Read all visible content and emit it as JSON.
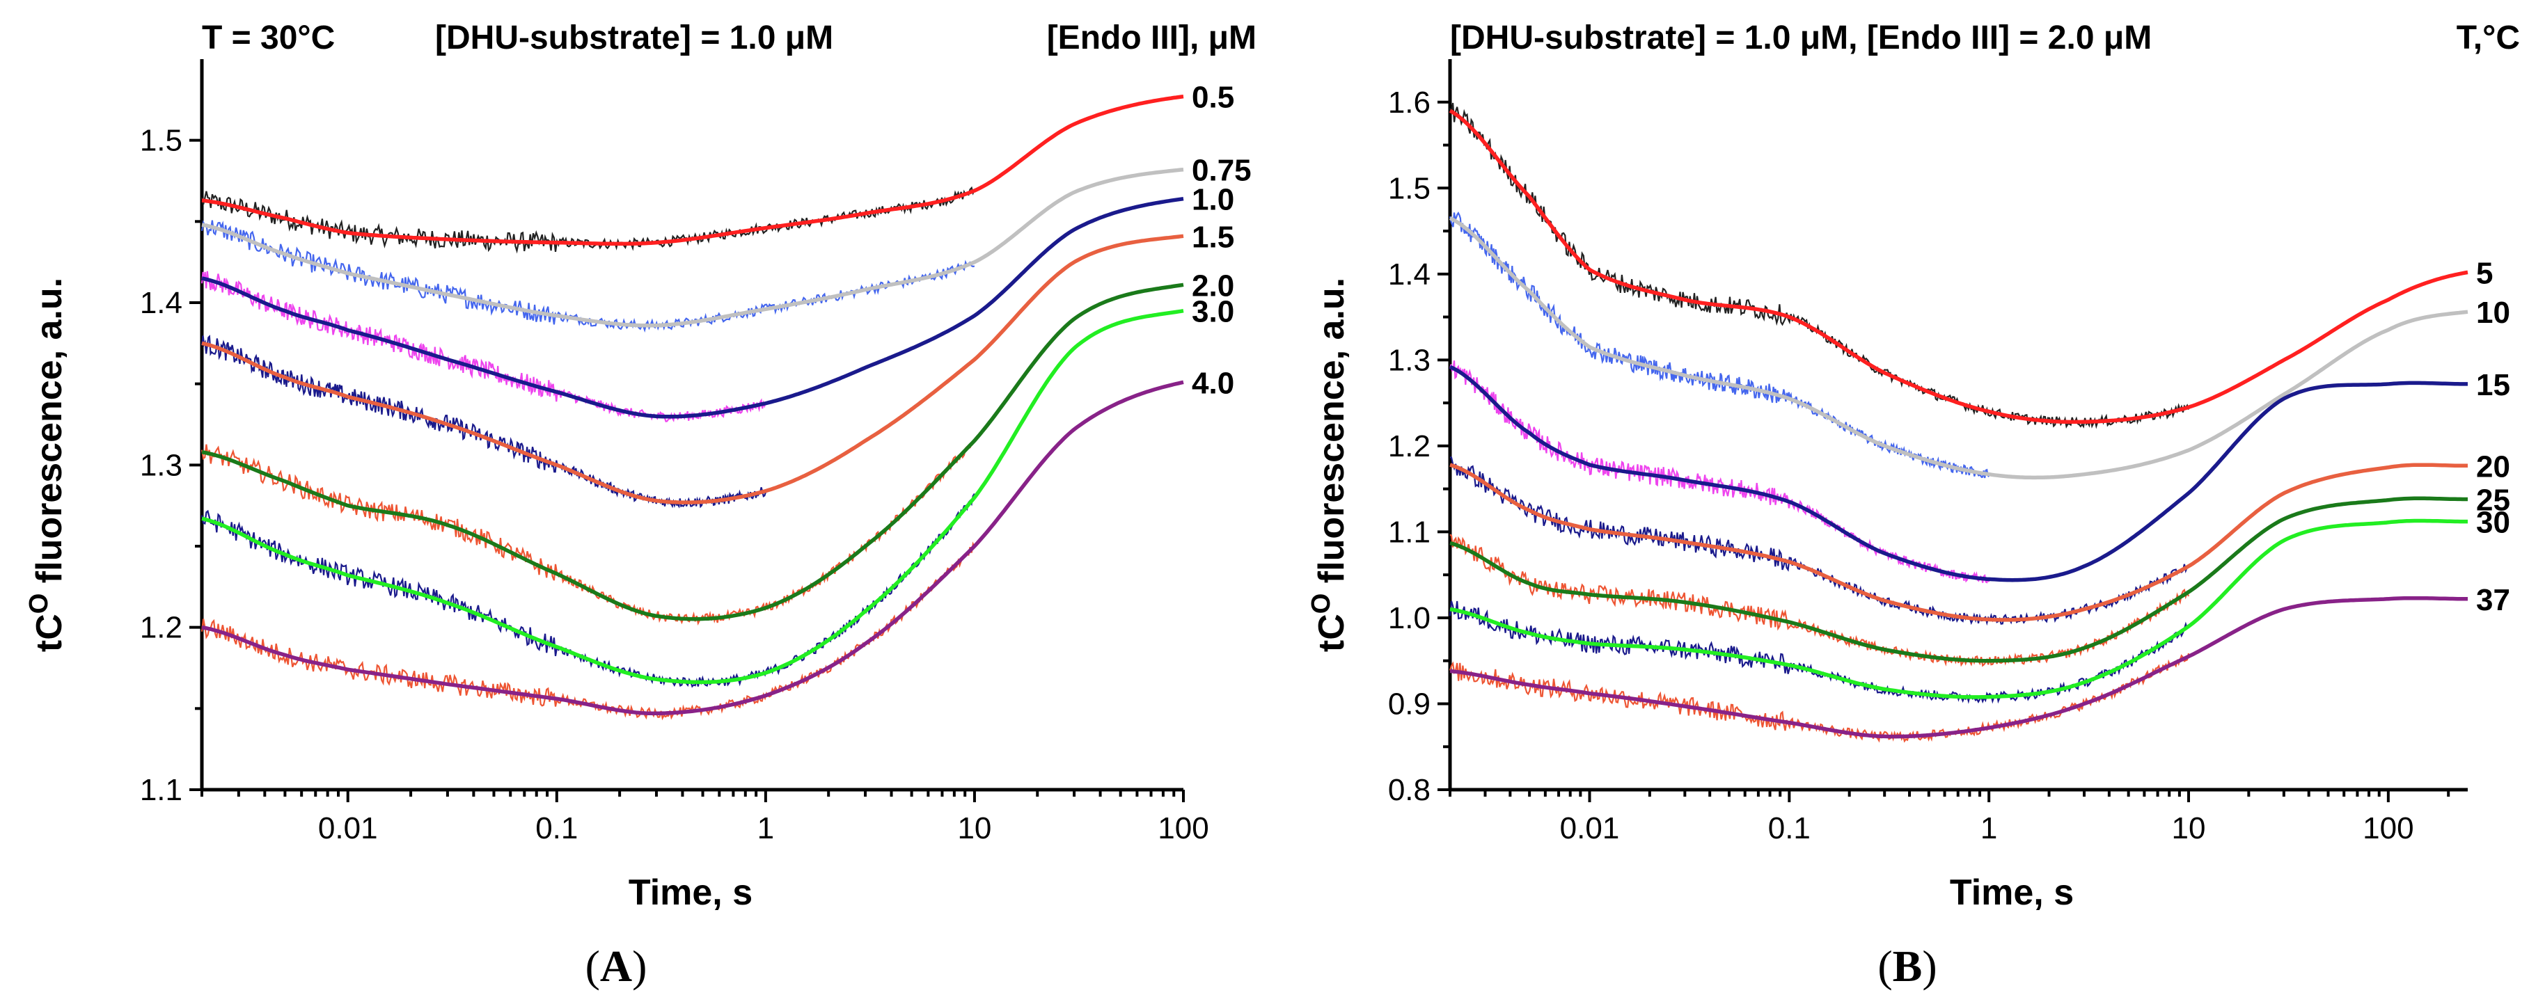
{
  "chart_data": [
    {
      "type": "line",
      "panel_label": "(A)",
      "panel_letter": "A",
      "header": {
        "left": "T = 30°C",
        "center": "[DHU-substrate] = 1.0 μM",
        "right": "[Endo III], μM"
      },
      "xlabel": "Time, s",
      "ylabel_prefix": "tC",
      "ylabel_superscript": "O",
      "ylabel_suffix": " fluorescence, a.u.",
      "xscale": "log",
      "xlim": [
        0.002,
        100
      ],
      "ylim": [
        1.1,
        1.55
      ],
      "x_ticks": [
        0.01,
        0.1,
        1,
        10,
        100
      ],
      "x_tick_labels": [
        "0.01",
        "0.1",
        "1",
        "10",
        "100"
      ],
      "y_ticks": [
        1.1,
        1.2,
        1.3,
        1.4,
        1.5
      ],
      "y_tick_labels": [
        "1.1",
        "1.2",
        "1.3",
        "1.4",
        "1.5"
      ],
      "x": [
        0.002,
        0.005,
        0.01,
        0.03,
        0.1,
        0.3,
        1,
        3,
        10,
        30,
        100
      ],
      "series": [
        {
          "name": "0.5",
          "color": "#ff2020",
          "data_color": "#222222",
          "values": [
            1.463,
            1.452,
            1.443,
            1.439,
            1.437,
            1.437,
            1.446,
            1.455,
            1.469,
            1.51,
            1.527
          ]
        },
        {
          "name": "0.75",
          "color": "#c0c0c0",
          "data_color": "#4466ee",
          "values": [
            1.448,
            1.43,
            1.418,
            1.405,
            1.392,
            1.386,
            1.396,
            1.408,
            1.425,
            1.468,
            1.482
          ]
        },
        {
          "name": "1.0",
          "color": "#1a1a8c",
          "data_color": "#ee44ee",
          "values": [
            1.415,
            1.395,
            1.383,
            1.365,
            1.345,
            1.33,
            1.338,
            1.36,
            1.392,
            1.445,
            1.464
          ]
        },
        {
          "name": "1.5",
          "color": "#e86040",
          "data_color": "#1a1a8c",
          "values": [
            1.375,
            1.354,
            1.342,
            1.325,
            1.3,
            1.278,
            1.284,
            1.315,
            1.365,
            1.425,
            1.441
          ]
        },
        {
          "name": "2.0",
          "color": "#1a7a1a",
          "data_color": "#ee5533",
          "values": [
            1.308,
            1.29,
            1.275,
            1.263,
            1.233,
            1.207,
            1.212,
            1.25,
            1.315,
            1.39,
            1.411
          ]
        },
        {
          "name": "3.0",
          "color": "#22ee22",
          "data_color": "#1a1a8c",
          "values": [
            1.267,
            1.245,
            1.232,
            1.215,
            1.188,
            1.168,
            1.172,
            1.21,
            1.28,
            1.372,
            1.395
          ]
        },
        {
          "name": "4.0",
          "color": "#882288",
          "data_color": "#ee5533",
          "values": [
            1.2,
            1.183,
            1.174,
            1.165,
            1.156,
            1.147,
            1.158,
            1.19,
            1.25,
            1.322,
            1.351
          ]
        }
      ]
    },
    {
      "type": "line",
      "panel_label": "(B)",
      "panel_letter": "B",
      "header": {
        "left": "[DHU-substrate] = 1.0 μM, [Endo III] = 2.0 μM",
        "right": "T,°C"
      },
      "xlabel": "Time, s",
      "ylabel_prefix": "tC",
      "ylabel_superscript": "O",
      "ylabel_suffix": " fluorescence, a.u.",
      "xscale": "log",
      "xlim": [
        0.002,
        250
      ],
      "ylim": [
        0.8,
        1.65
      ],
      "x_ticks": [
        0.01,
        0.1,
        1,
        10,
        100
      ],
      "x_tick_labels": [
        "0.01",
        "0.1",
        "1",
        "10",
        "100"
      ],
      "y_ticks": [
        0.8,
        0.9,
        1.0,
        1.1,
        1.2,
        1.3,
        1.4,
        1.5,
        1.6
      ],
      "y_tick_labels": [
        "0.8",
        "0.9",
        "1.0",
        "1.1",
        "1.2",
        "1.3",
        "1.4",
        "1.5",
        "1.6"
      ],
      "x": [
        0.002,
        0.005,
        0.01,
        0.03,
        0.1,
        0.3,
        1,
        3,
        10,
        30,
        100,
        250
      ],
      "series": [
        {
          "name": "5",
          "color": "#ff2020",
          "data_color": "#222222",
          "values": [
            1.59,
            1.49,
            1.405,
            1.37,
            1.35,
            1.285,
            1.24,
            1.228,
            1.245,
            1.3,
            1.37,
            1.402
          ]
        },
        {
          "name": "10",
          "color": "#c0c0c0",
          "data_color": "#4466ee",
          "values": [
            1.465,
            1.38,
            1.315,
            1.282,
            1.255,
            1.2,
            1.167,
            1.167,
            1.195,
            1.26,
            1.335,
            1.356
          ]
        },
        {
          "name": "15",
          "color": "#1a1a8c",
          "data_color": "#ee44ee",
          "values": [
            1.292,
            1.215,
            1.178,
            1.16,
            1.135,
            1.075,
            1.045,
            1.06,
            1.145,
            1.255,
            1.272,
            1.272
          ]
        },
        {
          "name": "20",
          "color": "#e86040",
          "data_color": "#1a1a8c",
          "values": [
            1.178,
            1.125,
            1.103,
            1.088,
            1.065,
            1.02,
            0.998,
            1.01,
            1.06,
            1.145,
            1.175,
            1.177
          ]
        },
        {
          "name": "25",
          "color": "#1a7a1a",
          "data_color": "#ee5533",
          "values": [
            1.087,
            1.04,
            1.027,
            1.018,
            0.995,
            0.963,
            0.95,
            0.965,
            1.03,
            1.115,
            1.137,
            1.138
          ]
        },
        {
          "name": "30",
          "color": "#22ee22",
          "data_color": "#1a1a8c",
          "values": [
            1.01,
            0.982,
            0.97,
            0.963,
            0.945,
            0.917,
            0.908,
            0.925,
            0.99,
            1.09,
            1.111,
            1.112
          ]
        },
        {
          "name": "37",
          "color": "#882288",
          "data_color": "#ee5533",
          "values": [
            0.938,
            0.922,
            0.912,
            0.897,
            0.878,
            0.862,
            0.872,
            0.9,
            0.955,
            1.01,
            1.022,
            1.022
          ]
        }
      ]
    }
  ]
}
